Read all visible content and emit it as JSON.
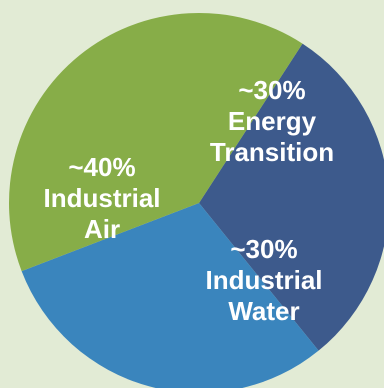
{
  "colors": {
    "background": "#e2ebd5",
    "energy_transition": "#3d5a8c",
    "industrial_water": "#3a85bd",
    "industrial_air": "#87ad48",
    "label_text": "#ffffff"
  },
  "chart_data": {
    "type": "pie",
    "title": "",
    "slices": [
      {
        "key": "energy_transition",
        "percent_label": "~30%",
        "name_lines": [
          "Energy",
          "Transition"
        ],
        "value": 30
      },
      {
        "key": "industrial_water",
        "percent_label": "~30%",
        "name_lines": [
          "Industrial",
          "Water"
        ],
        "value": 30
      },
      {
        "key": "industrial_air",
        "percent_label": "~40%",
        "name_lines": [
          "Industrial",
          "Air"
        ],
        "value": 40
      }
    ]
  }
}
